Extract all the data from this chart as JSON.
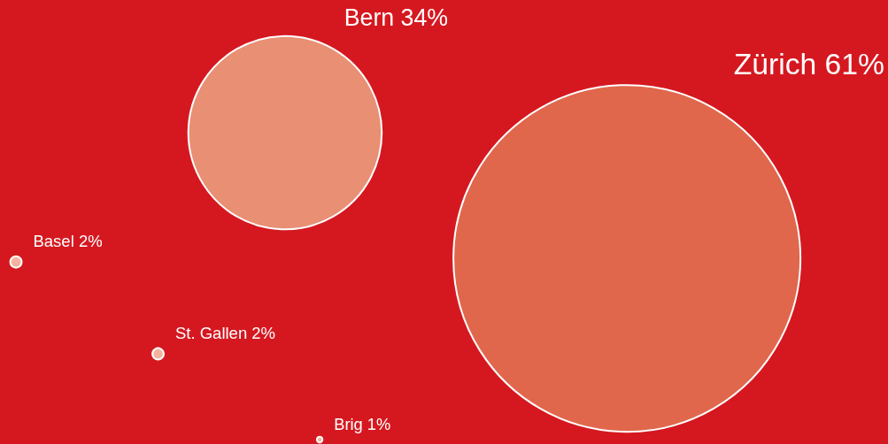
{
  "chart_data": {
    "type": "other",
    "categories": [
      "Zürich",
      "Bern",
      "Basel",
      "St. Gallen",
      "Brig"
    ],
    "values": [
      61,
      34,
      2,
      2,
      1
    ],
    "value_labels": [
      "61%",
      "34%",
      "2%",
      "2%",
      "1%"
    ],
    "colors": [
      "#e0674c",
      "#e88f74",
      "#f4b39e",
      "#f4b39e",
      "#f4b39e"
    ]
  }
}
